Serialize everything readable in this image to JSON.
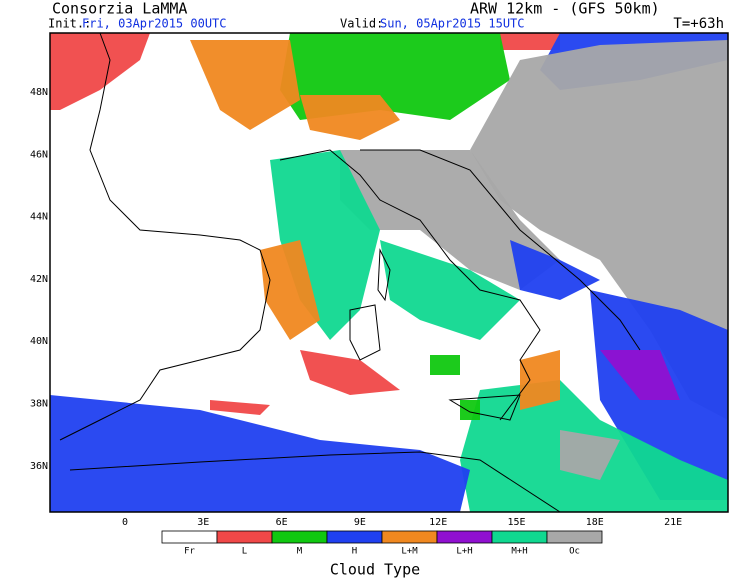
{
  "header": {
    "title": "Consorzia LaMMA",
    "model": "ARW 12km - (GFS 50km)",
    "init_label": "Init.:",
    "init_time": "Fri, 03Apr2015 00UTC",
    "valid_label": "Valid:",
    "valid_time": "Sun, 05Apr2015 15UTC",
    "lead_time": "T=+63h"
  },
  "map": {
    "lat_labels": [
      "48N",
      "46N",
      "44N",
      "42N",
      "40N",
      "38N",
      "36N"
    ],
    "lon_labels": [
      "0",
      "3E",
      "6E",
      "9E",
      "12E",
      "15E",
      "18E",
      "21E"
    ]
  },
  "legend": {
    "title": "Cloud Type",
    "items": [
      {
        "label": "Fr",
        "color": "#ffffff"
      },
      {
        "label": "L",
        "color": "#f04848"
      },
      {
        "label": "M",
        "color": "#10c810"
      },
      {
        "label": "H",
        "color": "#2040f0"
      },
      {
        "label": "L+M",
        "color": "#f08820"
      },
      {
        "label": "L+H",
        "color": "#9010d0"
      },
      {
        "label": "M+H",
        "color": "#10d890"
      },
      {
        "label": "Oc",
        "color": "#a8a8a8"
      }
    ]
  }
}
